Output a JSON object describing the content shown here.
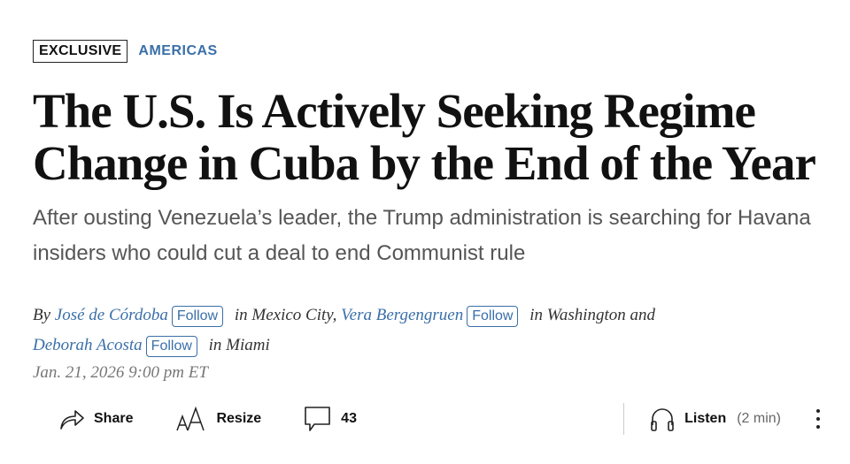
{
  "tags": {
    "exclusive": "EXCLUSIVE",
    "section": "AMERICAS"
  },
  "headline": "The U.S. Is Actively Seeking Regime Change in Cuba by the End of the Year",
  "dek": "After ousting Venezuela’s leader, the Trump administration is searching for Havana insiders who could cut a deal to end Communist rule",
  "byline": {
    "by": "By",
    "authors": [
      {
        "name": "José de Córdoba",
        "follow": "Follow",
        "location": "in Mexico City,"
      },
      {
        "name": "Vera Bergengruen",
        "follow": "Follow",
        "location": "in Washington and"
      },
      {
        "name": "Deborah Acosta",
        "follow": "Follow",
        "location": "in Miami"
      }
    ]
  },
  "date": "Jan. 21, 2026 9:00 pm ET",
  "toolbar": {
    "share": "Share",
    "resize": "Resize",
    "comments": "43",
    "listen": "Listen",
    "listen_duration": "(2 min)"
  },
  "colors": {
    "accent": "#3a6fa8"
  }
}
